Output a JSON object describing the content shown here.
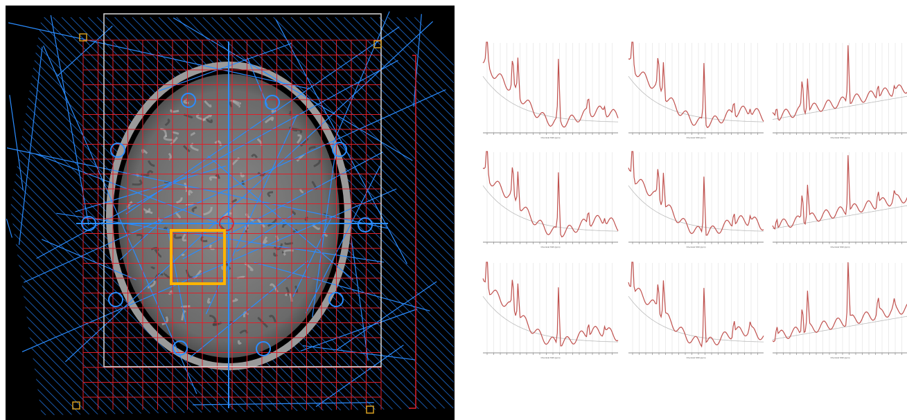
{
  "spectra": {
    "x_label": "Chemical Shift (ppm)"
  }
}
